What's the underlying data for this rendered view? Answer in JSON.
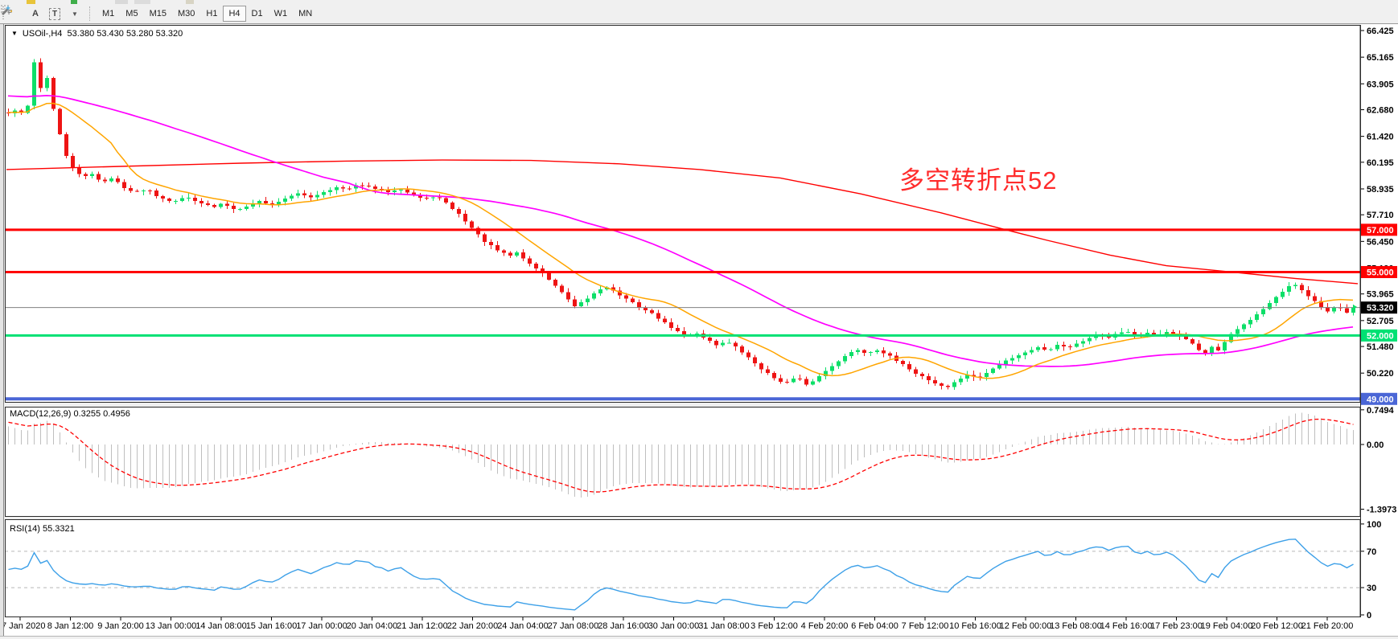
{
  "toolbar": {
    "icon_labels": {
      "grid_f": "F",
      "text_a": "A",
      "text_t": "T"
    },
    "timeframes": [
      "M1",
      "M5",
      "M15",
      "M30",
      "H1",
      "H4",
      "D1",
      "W1",
      "MN"
    ],
    "active_timeframe": "H4"
  },
  "chart": {
    "title": "USOil-,H4  53.380 53.430 53.280 53.320",
    "symbol": "USOil-",
    "timeframe": "H4",
    "ohlc": {
      "open": "53.380",
      "high": "53.430",
      "low": "53.280",
      "close": "53.320"
    },
    "annotation": {
      "text": "多空转折点52",
      "color": "#ff2b2b"
    },
    "price_axis_labels": [
      "66.425",
      "65.165",
      "63.905",
      "62.680",
      "61.420",
      "60.195",
      "58.935",
      "57.710",
      "56.450",
      "55.190",
      "53.965",
      "52.705",
      "51.480",
      "50.220"
    ],
    "hlines": [
      {
        "price": 57.0,
        "label": "57.000",
        "color": "#ff0000",
        "width": 3
      },
      {
        "price": 55.0,
        "label": "55.000",
        "color": "#ff0000",
        "width": 3
      },
      {
        "price": 52.0,
        "label": "52.000",
        "color": "#00e173",
        "width": 3
      },
      {
        "price": 49.0,
        "label": "49.000",
        "color": "#4a66d6",
        "width": 4
      }
    ],
    "current_price": {
      "label": "53.320",
      "value": 53.32,
      "badge_bg": "#000000",
      "line_color": "#808080"
    }
  },
  "chart_data": {
    "type": "candlestick",
    "title": "USOil- H4 candlestick chart with MACD and RSI",
    "ylim": [
      48.86,
      66.65
    ],
    "grid": false,
    "x_axis_dates": [
      "7 Jan 2020",
      "8 Jan 12:00",
      "9 Jan 20:00",
      "13 Jan 00:00",
      "14 Jan 08:00",
      "15 Jan 16:00",
      "17 Jan 00:00",
      "20 Jan 04:00",
      "21 Jan 12:00",
      "22 Jan 20:00",
      "24 Jan 04:00",
      "27 Jan 08:00",
      "28 Jan 16:00",
      "30 Jan 00:00",
      "31 Jan 08:00",
      "3 Feb 12:00",
      "4 Feb 20:00",
      "6 Feb 04:00",
      "7 Feb 12:00",
      "10 Feb 16:00",
      "12 Feb 00:00",
      "13 Feb 08:00",
      "14 Feb 16:00",
      "17 Feb 23:00",
      "19 Feb 04:00",
      "20 Feb 12:00",
      "21 Feb 20:00"
    ],
    "close_waypoints": [
      [
        8,
        62.5
      ],
      [
        16,
        62.65
      ],
      [
        24,
        62.5
      ],
      [
        32,
        62.85
      ],
      [
        40,
        64.95
      ],
      [
        48,
        63.7
      ],
      [
        56,
        64.2
      ],
      [
        64,
        62.7
      ],
      [
        72,
        61.5
      ],
      [
        80,
        60.5
      ],
      [
        88,
        59.95
      ],
      [
        100,
        59.45
      ],
      [
        112,
        59.65
      ],
      [
        125,
        59.25
      ],
      [
        138,
        59.45
      ],
      [
        150,
        59.05
      ],
      [
        165,
        58.75
      ],
      [
        180,
        58.95
      ],
      [
        195,
        58.55
      ],
      [
        212,
        58.35
      ],
      [
        230,
        58.55
      ],
      [
        250,
        58.25
      ],
      [
        262,
        58.05
      ],
      [
        275,
        58.25
      ],
      [
        290,
        57.95
      ],
      [
        305,
        58.15
      ],
      [
        320,
        58.35
      ],
      [
        337,
        58.2
      ],
      [
        352,
        58.5
      ],
      [
        368,
        58.7
      ],
      [
        385,
        58.55
      ],
      [
        400,
        58.8
      ],
      [
        415,
        59.0
      ],
      [
        430,
        58.9
      ],
      [
        445,
        59.15
      ],
      [
        462,
        58.95
      ],
      [
        478,
        58.8
      ],
      [
        495,
        58.95
      ],
      [
        510,
        58.65
      ],
      [
        525,
        58.45
      ],
      [
        540,
        58.6
      ],
      [
        552,
        58.25
      ],
      [
        565,
        57.85
      ],
      [
        578,
        57.35
      ],
      [
        587,
        56.95
      ],
      [
        600,
        56.45
      ],
      [
        615,
        56.05
      ],
      [
        630,
        55.75
      ],
      [
        642,
        55.95
      ],
      [
        650,
        55.55
      ],
      [
        662,
        55.25
      ],
      [
        675,
        54.85
      ],
      [
        688,
        54.35
      ],
      [
        700,
        53.85
      ],
      [
        712,
        53.35
      ],
      [
        725,
        53.65
      ],
      [
        738,
        54.05
      ],
      [
        750,
        54.35
      ],
      [
        762,
        54.05
      ],
      [
        775,
        53.75
      ],
      [
        788,
        53.45
      ],
      [
        800,
        53.2
      ],
      [
        812,
        52.95
      ],
      [
        825,
        52.55
      ],
      [
        837,
        52.25
      ],
      [
        850,
        51.95
      ],
      [
        862,
        52.15
      ],
      [
        875,
        51.85
      ],
      [
        888,
        51.55
      ],
      [
        900,
        51.75
      ],
      [
        912,
        51.45
      ],
      [
        925,
        51.05
      ],
      [
        937,
        50.65
      ],
      [
        950,
        50.25
      ],
      [
        962,
        49.95
      ],
      [
        975,
        49.75
      ],
      [
        988,
        50.05
      ],
      [
        1000,
        49.65
      ],
      [
        1012,
        49.95
      ],
      [
        1025,
        50.35
      ],
      [
        1037,
        50.75
      ],
      [
        1050,
        51.05
      ],
      [
        1062,
        51.35
      ],
      [
        1075,
        51.15
      ],
      [
        1087,
        51.35
      ],
      [
        1100,
        51.1
      ],
      [
        1112,
        50.8
      ],
      [
        1125,
        50.5
      ],
      [
        1137,
        50.2
      ],
      [
        1150,
        49.95
      ],
      [
        1162,
        49.7
      ],
      [
        1175,
        49.55
      ],
      [
        1187,
        49.85
      ],
      [
        1200,
        50.15
      ],
      [
        1212,
        49.95
      ],
      [
        1225,
        50.25
      ],
      [
        1237,
        50.55
      ],
      [
        1250,
        50.85
      ],
      [
        1262,
        51.05
      ],
      [
        1275,
        51.25
      ],
      [
        1287,
        51.45
      ],
      [
        1300,
        51.3
      ],
      [
        1312,
        51.55
      ],
      [
        1325,
        51.45
      ],
      [
        1337,
        51.65
      ],
      [
        1350,
        51.85
      ],
      [
        1362,
        52.05
      ],
      [
        1375,
        51.9
      ],
      [
        1387,
        52.1
      ],
      [
        1400,
        52.15
      ],
      [
        1412,
        52.0
      ],
      [
        1425,
        52.1
      ],
      [
        1437,
        52.0
      ],
      [
        1450,
        52.15
      ],
      [
        1462,
        52.05
      ],
      [
        1475,
        51.75
      ],
      [
        1487,
        51.35
      ],
      [
        1495,
        51.15
      ],
      [
        1505,
        51.5
      ],
      [
        1512,
        51.25
      ],
      [
        1520,
        51.7
      ],
      [
        1525,
        51.95
      ],
      [
        1537,
        52.3
      ],
      [
        1550,
        52.7
      ],
      [
        1562,
        53.1
      ],
      [
        1575,
        53.5
      ],
      [
        1587,
        53.9
      ],
      [
        1597,
        54.2
      ],
      [
        1605,
        54.45
      ],
      [
        1613,
        54.25
      ],
      [
        1622,
        53.9
      ],
      [
        1632,
        53.6
      ],
      [
        1641,
        53.3
      ],
      [
        1650,
        53.1
      ],
      [
        1658,
        53.4
      ],
      [
        1666,
        53.2
      ],
      [
        1673,
        53.05
      ],
      [
        1680,
        53.32
      ]
    ],
    "moving_averages": {
      "fast": {
        "name": "MA fast",
        "color": "#ffa500",
        "period": 13
      },
      "medium": {
        "name": "MA medium",
        "color": "#ff00ff",
        "period": 50
      },
      "slow": {
        "name": "MA slow",
        "color": "#ff0000",
        "waypoints": [
          [
            8,
            59.85
          ],
          [
            150,
            60.0
          ],
          [
            300,
            60.15
          ],
          [
            430,
            60.25
          ],
          [
            550,
            60.3
          ],
          [
            660,
            60.28
          ],
          [
            770,
            60.12
          ],
          [
            870,
            59.85
          ],
          [
            970,
            59.45
          ],
          [
            1070,
            58.7
          ],
          [
            1170,
            57.8
          ],
          [
            1240,
            57.1
          ],
          [
            1302,
            56.5
          ],
          [
            1380,
            55.8
          ],
          [
            1450,
            55.3
          ],
          [
            1532,
            55.0
          ],
          [
            1610,
            54.7
          ],
          [
            1688,
            54.45
          ]
        ]
      }
    },
    "indicators": {
      "macd": {
        "label": "MACD(12,26,9)",
        "values": "0.3255 0.4956",
        "axis_labels": [
          [
            "0.7494",
            0.7494
          ],
          [
            "0.00",
            0.0
          ],
          [
            "-1.3973",
            -1.3973
          ]
        ],
        "histogram_color": "#bfbfbf",
        "signal_color": "#ff0000"
      },
      "rsi": {
        "label": "RSI(14)",
        "value": "55.3321",
        "axis_labels": [
          [
            "100",
            100
          ],
          [
            "70",
            70
          ],
          [
            "30",
            30
          ],
          [
            "0",
            0
          ]
        ],
        "levels": [
          70,
          30
        ],
        "line_color": "#3da0e8",
        "level_color": "#b8b8b8"
      }
    }
  },
  "colors": {
    "bull": "#0ddf68",
    "bear": "#ee1414",
    "background": "#ffffff",
    "chrome": "#f0f0f0",
    "axis_text": "#000000",
    "border": "#2b2b2b"
  }
}
